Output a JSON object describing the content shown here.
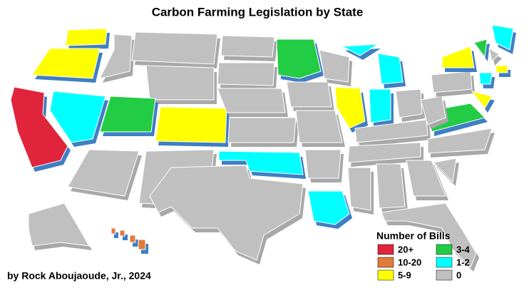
{
  "title": "Carbon Farming Legislation by State",
  "legend": {
    "title": "Number of Bills",
    "items": [
      {
        "label": "20+",
        "color": "#e0243c"
      },
      {
        "label": "10-20",
        "color": "#e07b3a"
      },
      {
        "label": "5-9",
        "color": "#ffff00"
      },
      {
        "label": "3-4",
        "color": "#22cc44"
      },
      {
        "label": "1-2",
        "color": "#00ffff"
      },
      {
        "label": "0",
        "color": "#c0c0c0"
      }
    ]
  },
  "credit": "by Rock Aboujaoude, Jr., 2024"
}
